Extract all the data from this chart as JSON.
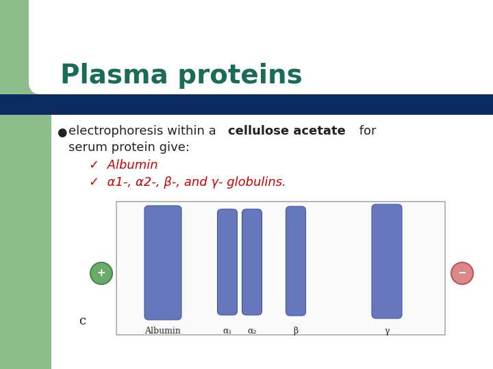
{
  "title": "Plasma proteins",
  "title_color": "#1a6b5a",
  "bg_color": "#ffffff",
  "green_color": "#8fbc8b",
  "navy_color": "#0d2b5e",
  "bullet_color": "#222222",
  "check_color": "#cc0000",
  "band_color": "#6677bb",
  "band_edge_color": "#4455aa",
  "box_bg": "#fafafa",
  "box_border": "#aaaaaa",
  "label_color": "#222222",
  "plus_bg": "#6aaa6a",
  "plus_border": "#448844",
  "minus_bg": "#dd8888",
  "minus_border": "#bb5555",
  "band_labels": [
    "Albumin",
    "α₁",
    "β",
    "γ"
  ],
  "check1": "✓  Albumin",
  "check2": "✓  α1-, α2-, β-, and γ- globulins."
}
